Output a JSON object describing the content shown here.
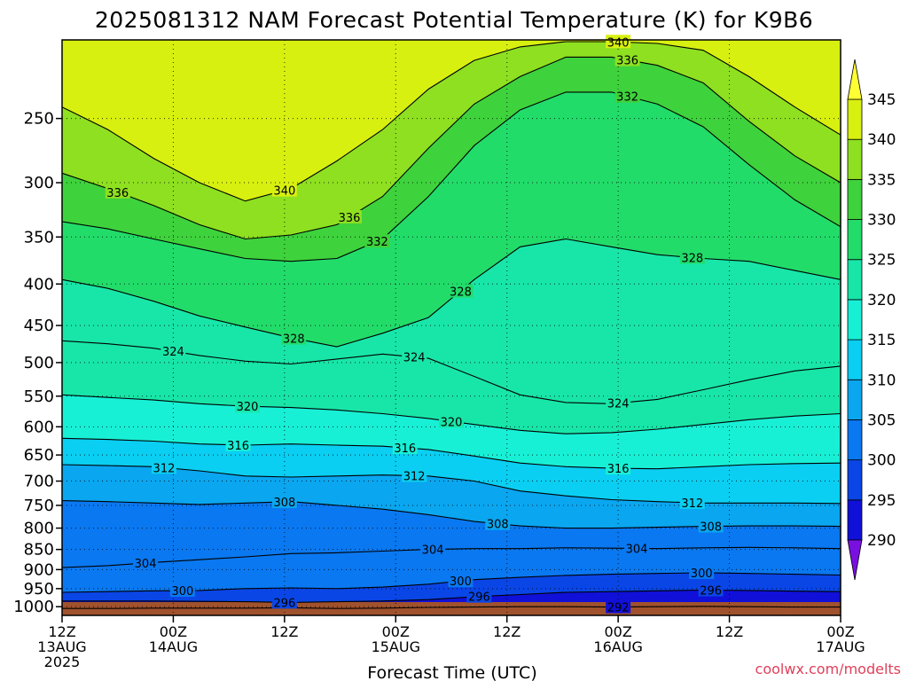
{
  "chart_data": {
    "type": "heatmap",
    "title": "2025081312 NAM Forecast Potential Temperature (K) for K9B6",
    "xlabel": "Forecast Time (UTC)",
    "ylabel": "",
    "x_ticks": [
      {
        "h": 0,
        "lines": [
          "12Z",
          "13AUG",
          "2025"
        ]
      },
      {
        "h": 12,
        "lines": [
          "00Z",
          "14AUG"
        ]
      },
      {
        "h": 24,
        "lines": [
          "12Z"
        ]
      },
      {
        "h": 36,
        "lines": [
          "00Z",
          "15AUG"
        ]
      },
      {
        "h": 48,
        "lines": [
          "12Z"
        ]
      },
      {
        "h": 60,
        "lines": [
          "00Z",
          "16AUG"
        ]
      },
      {
        "h": 72,
        "lines": [
          "12Z"
        ]
      },
      {
        "h": 84,
        "lines": [
          "00Z",
          "17AUG"
        ]
      }
    ],
    "x_range_hours": [
      0,
      84
    ],
    "y_ticks": [
      250,
      300,
      350,
      400,
      450,
      500,
      550,
      600,
      650,
      700,
      750,
      800,
      850,
      900,
      950,
      1000
    ],
    "y_range_hPa": [
      1025,
      200
    ],
    "colorbar": {
      "levels": [
        290,
        295,
        300,
        305,
        310,
        315,
        320,
        325,
        330,
        335,
        340,
        345
      ],
      "labels": [
        290,
        295,
        300,
        305,
        310,
        315,
        320,
        325,
        330,
        335,
        340,
        345
      ],
      "colors": [
        "#7a10e0",
        "#1010d8",
        "#0a46e6",
        "#0a78f0",
        "#0aa6f0",
        "#0acff2",
        "#18f0d6",
        "#18e6a8",
        "#22dc6a",
        "#3ed23c",
        "#8ee020",
        "#d8f010",
        "#ffff33"
      ]
    },
    "surface_color": "#a0522d",
    "contours": [
      {
        "value": 292,
        "pressure": [
          1005,
          1005,
          1004,
          1004,
          1004,
          1003,
          1005,
          1004,
          1002,
          1001,
          1000,
          1000,
          1001,
          1000,
          999,
          1000,
          1001,
          1001
        ],
        "label": "292",
        "label_h": 60
      },
      {
        "value": 296,
        "pressure": [
          984,
          984,
          984,
          985,
          986,
          988,
          986,
          984,
          980,
          972,
          966,
          960,
          958,
          956,
          954,
          955,
          957,
          958
        ],
        "label": "296",
        "label_h": 24
      },
      {
        "value": 296,
        "pressure": [
          984,
          984,
          984,
          985,
          986,
          988,
          986,
          984,
          980,
          972,
          966,
          960,
          958,
          956,
          954,
          955,
          957,
          958
        ],
        "label": "296",
        "label_h": 45
      },
      {
        "value": 296,
        "pressure": [
          984,
          984,
          984,
          985,
          986,
          988,
          986,
          984,
          980,
          972,
          966,
          960,
          958,
          956,
          954,
          955,
          957,
          958
        ],
        "label": "296",
        "label_h": 70
      },
      {
        "value": 300,
        "pressure": [
          960,
          958,
          956,
          955,
          950,
          948,
          950,
          946,
          938,
          926,
          920,
          915,
          912,
          910,
          908,
          910,
          912,
          914
        ],
        "label": "300",
        "label_h": 13
      },
      {
        "value": 300,
        "pressure": [
          960,
          958,
          956,
          955,
          950,
          948,
          950,
          946,
          938,
          926,
          920,
          915,
          912,
          910,
          908,
          910,
          912,
          914
        ],
        "label": "300",
        "label_h": 43
      },
      {
        "value": 300,
        "pressure": [
          960,
          958,
          956,
          955,
          950,
          948,
          950,
          946,
          938,
          926,
          920,
          915,
          912,
          910,
          908,
          910,
          912,
          914
        ],
        "label": "300",
        "label_h": 69
      },
      {
        "value": 304,
        "pressure": [
          895,
          890,
          882,
          875,
          868,
          860,
          858,
          854,
          850,
          848,
          848,
          846,
          847,
          848,
          846,
          845,
          846,
          848
        ],
        "label": "304",
        "label_h": 9
      },
      {
        "value": 304,
        "pressure": [
          895,
          890,
          882,
          875,
          868,
          860,
          858,
          854,
          850,
          848,
          848,
          846,
          847,
          848,
          846,
          845,
          846,
          848
        ],
        "label": "304",
        "label_h": 40
      },
      {
        "value": 304,
        "pressure": [
          895,
          890,
          882,
          875,
          868,
          860,
          858,
          854,
          850,
          848,
          848,
          846,
          847,
          848,
          846,
          845,
          846,
          848
        ],
        "label": "304",
        "label_h": 62
      },
      {
        "value": 308,
        "pressure": [
          740,
          742,
          745,
          748,
          745,
          742,
          750,
          758,
          770,
          785,
          795,
          800,
          800,
          798,
          796,
          795,
          795,
          796
        ],
        "label": "308",
        "label_h": 24
      },
      {
        "value": 308,
        "pressure": [
          740,
          742,
          745,
          748,
          745,
          742,
          750,
          758,
          770,
          785,
          795,
          800,
          800,
          798,
          796,
          795,
          795,
          796
        ],
        "label": "308",
        "label_h": 47
      },
      {
        "value": 308,
        "pressure": [
          740,
          742,
          745,
          748,
          745,
          742,
          750,
          758,
          770,
          785,
          795,
          800,
          800,
          798,
          796,
          795,
          795,
          796
        ],
        "label": "308",
        "label_h": 70
      },
      {
        "value": 312,
        "pressure": [
          668,
          670,
          672,
          680,
          690,
          692,
          690,
          688,
          690,
          700,
          720,
          730,
          738,
          742,
          745,
          745,
          745,
          746
        ],
        "label": "312",
        "label_h": 11
      },
      {
        "value": 312,
        "pressure": [
          668,
          670,
          672,
          680,
          690,
          692,
          690,
          688,
          690,
          700,
          720,
          730,
          738,
          742,
          745,
          745,
          745,
          746
        ],
        "label": "312",
        "label_h": 38
      },
      {
        "value": 312,
        "pressure": [
          668,
          670,
          672,
          680,
          690,
          692,
          690,
          688,
          690,
          700,
          720,
          730,
          738,
          742,
          745,
          745,
          745,
          746
        ],
        "label": "312",
        "label_h": 68
      },
      {
        "value": 316,
        "pressure": [
          620,
          622,
          625,
          630,
          632,
          630,
          632,
          634,
          640,
          652,
          665,
          672,
          675,
          676,
          672,
          668,
          666,
          665
        ],
        "label": "316",
        "label_h": 19
      },
      {
        "value": 316,
        "pressure": [
          620,
          622,
          625,
          630,
          632,
          630,
          632,
          634,
          640,
          652,
          665,
          672,
          675,
          676,
          672,
          668,
          666,
          665
        ],
        "label": "316",
        "label_h": 37
      },
      {
        "value": 316,
        "pressure": [
          620,
          622,
          625,
          630,
          632,
          630,
          632,
          634,
          640,
          652,
          665,
          672,
          675,
          676,
          672,
          668,
          666,
          665
        ],
        "label": "316",
        "label_h": 60
      },
      {
        "value": 320,
        "pressure": [
          548,
          552,
          556,
          562,
          566,
          568,
          572,
          578,
          586,
          596,
          606,
          612,
          610,
          604,
          596,
          588,
          582,
          578
        ],
        "label": "320",
        "label_h": 20
      },
      {
        "value": 320,
        "pressure": [
          548,
          552,
          556,
          562,
          566,
          568,
          572,
          578,
          586,
          596,
          606,
          612,
          610,
          604,
          596,
          588,
          582,
          578
        ],
        "label": "320",
        "label_h": 42
      },
      {
        "value": 324,
        "pressure": [
          470,
          474,
          480,
          490,
          498,
          502,
          495,
          488,
          494,
          520,
          548,
          560,
          562,
          555,
          540,
          525,
          512,
          505
        ],
        "label": "324",
        "label_h": 12
      },
      {
        "value": 324,
        "pressure": [
          470,
          474,
          480,
          490,
          498,
          502,
          495,
          488,
          494,
          520,
          548,
          560,
          562,
          555,
          540,
          525,
          512,
          505
        ],
        "label": "324",
        "label_h": 38
      },
      {
        "value": 324,
        "pressure": [
          470,
          474,
          480,
          490,
          498,
          502,
          495,
          488,
          494,
          520,
          548,
          560,
          562,
          555,
          540,
          525,
          512,
          505
        ],
        "label": "324",
        "label_h": 60
      },
      {
        "value": 328,
        "pressure": [
          395,
          405,
          420,
          438,
          452,
          466,
          478,
          460,
          440,
          395,
          360,
          352,
          360,
          368,
          372,
          375,
          385,
          395
        ],
        "label": "328",
        "label_h": 25
      },
      {
        "value": 328,
        "pressure": [
          395,
          405,
          420,
          438,
          452,
          466,
          478,
          460,
          440,
          395,
          360,
          352,
          360,
          368,
          372,
          375,
          385,
          395
        ],
        "label": "328",
        "label_h": 43
      },
      {
        "value": 328,
        "pressure": [
          395,
          405,
          420,
          438,
          452,
          466,
          478,
          460,
          440,
          395,
          360,
          352,
          360,
          368,
          372,
          375,
          385,
          395
        ],
        "label": "328",
        "label_h": 68
      },
      {
        "value": 332,
        "pressure": [
          335,
          342,
          352,
          362,
          372,
          375,
          372,
          352,
          312,
          270,
          244,
          232,
          232,
          240,
          256,
          285,
          315,
          340
        ],
        "label": "332",
        "label_h": 34
      },
      {
        "value": 332,
        "pressure": [
          335,
          342,
          352,
          362,
          372,
          375,
          372,
          352,
          312,
          270,
          244,
          232,
          232,
          240,
          256,
          285,
          315,
          340
        ],
        "label": "332",
        "label_h": 61
      },
      {
        "value": 336,
        "pressure": [
          292,
          305,
          320,
          338,
          352,
          348,
          338,
          312,
          272,
          240,
          222,
          210,
          210,
          215,
          226,
          252,
          278,
          300
        ],
        "label": "336",
        "label_h": 6
      },
      {
        "value": 336,
        "pressure": [
          292,
          305,
          320,
          338,
          352,
          348,
          338,
          312,
          272,
          240,
          222,
          210,
          210,
          215,
          226,
          252,
          278,
          300
        ],
        "label": "336",
        "label_h": 31
      },
      {
        "value": 336,
        "pressure": [
          292,
          305,
          320,
          338,
          352,
          348,
          338,
          312,
          272,
          240,
          222,
          210,
          210,
          215,
          226,
          252,
          278,
          300
        ],
        "label": "336",
        "label_h": 61
      },
      {
        "value": 340,
        "pressure": [
          242,
          258,
          280,
          300,
          316,
          305,
          282,
          258,
          230,
          212,
          204,
          201,
          201,
          202,
          206,
          222,
          242,
          262
        ],
        "label": "340",
        "label_h": 24
      },
      {
        "value": 340,
        "pressure": [
          242,
          258,
          280,
          300,
          316,
          305,
          282,
          258,
          230,
          212,
          204,
          201,
          201,
          202,
          206,
          222,
          242,
          262
        ],
        "label": "340",
        "label_h": 60
      }
    ]
  },
  "credit": "coolwx.com/modelts"
}
